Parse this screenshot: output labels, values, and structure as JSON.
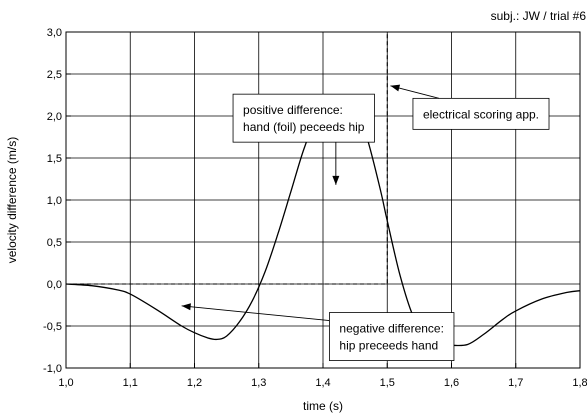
{
  "chart_data": {
    "type": "line",
    "subtitle": "subj.: JW / trial #6",
    "xlabel": "time (s)",
    "ylabel": "velocity difference (m/s)",
    "xlim": [
      1.0,
      1.8
    ],
    "ylim": [
      -1.0,
      3.0
    ],
    "x_ticks": [
      "1,0",
      "1,1",
      "1,2",
      "1,3",
      "1,4",
      "1,5",
      "1,6",
      "1,7",
      "1,8"
    ],
    "y_ticks": [
      "-1,0",
      "-0,5",
      "0,0",
      "0,5",
      "1,0",
      "1,5",
      "2,0",
      "2,5",
      "3,0"
    ],
    "grid": true,
    "series": [
      {
        "style": "solid",
        "x": [
          1.0,
          1.04,
          1.08,
          1.1,
          1.14,
          1.18,
          1.2,
          1.22,
          1.235,
          1.25,
          1.27,
          1.29,
          1.31,
          1.33,
          1.35,
          1.37,
          1.39,
          1.41,
          1.425,
          1.435,
          1.45,
          1.47,
          1.49,
          1.5,
          1.52,
          1.54,
          1.56,
          1.58,
          1.6,
          1.625,
          1.65,
          1.68,
          1.7,
          1.74,
          1.78,
          1.8
        ],
        "y": [
          0.0,
          -0.02,
          -0.07,
          -0.12,
          -0.3,
          -0.5,
          -0.58,
          -0.64,
          -0.66,
          -0.62,
          -0.45,
          -0.2,
          0.15,
          0.6,
          1.1,
          1.6,
          1.98,
          2.2,
          2.25,
          2.24,
          2.15,
          1.7,
          1.1,
          0.75,
          0.1,
          -0.38,
          -0.62,
          -0.72,
          -0.73,
          -0.72,
          -0.6,
          -0.42,
          -0.32,
          -0.18,
          -0.1,
          -0.08
        ]
      },
      {
        "style": "dashed",
        "x": [
          1.0,
          1.49,
          1.49,
          1.5,
          1.5
        ],
        "y": [
          0.0,
          0.0,
          0.0,
          0.0,
          3.0
        ]
      }
    ],
    "annotations": [
      {
        "id": "positive",
        "lines": [
          "positive difference:",
          "hand (foil) peceeds hip"
        ],
        "box_anchor": [
          1.26,
          2.26
        ],
        "arrow_to": [
          1.42,
          1.18
        ]
      },
      {
        "id": "negative",
        "lines": [
          "negative difference:",
          "hip preceeds hand"
        ],
        "box_anchor": [
          1.41,
          -0.34
        ],
        "arrow_to": [
          1.18,
          -0.26
        ]
      },
      {
        "id": "scoring",
        "lines": [
          "electrical scoring app."
        ],
        "box_anchor": [
          1.54,
          2.21
        ],
        "arrow_to": [
          1.505,
          2.36
        ]
      }
    ]
  }
}
